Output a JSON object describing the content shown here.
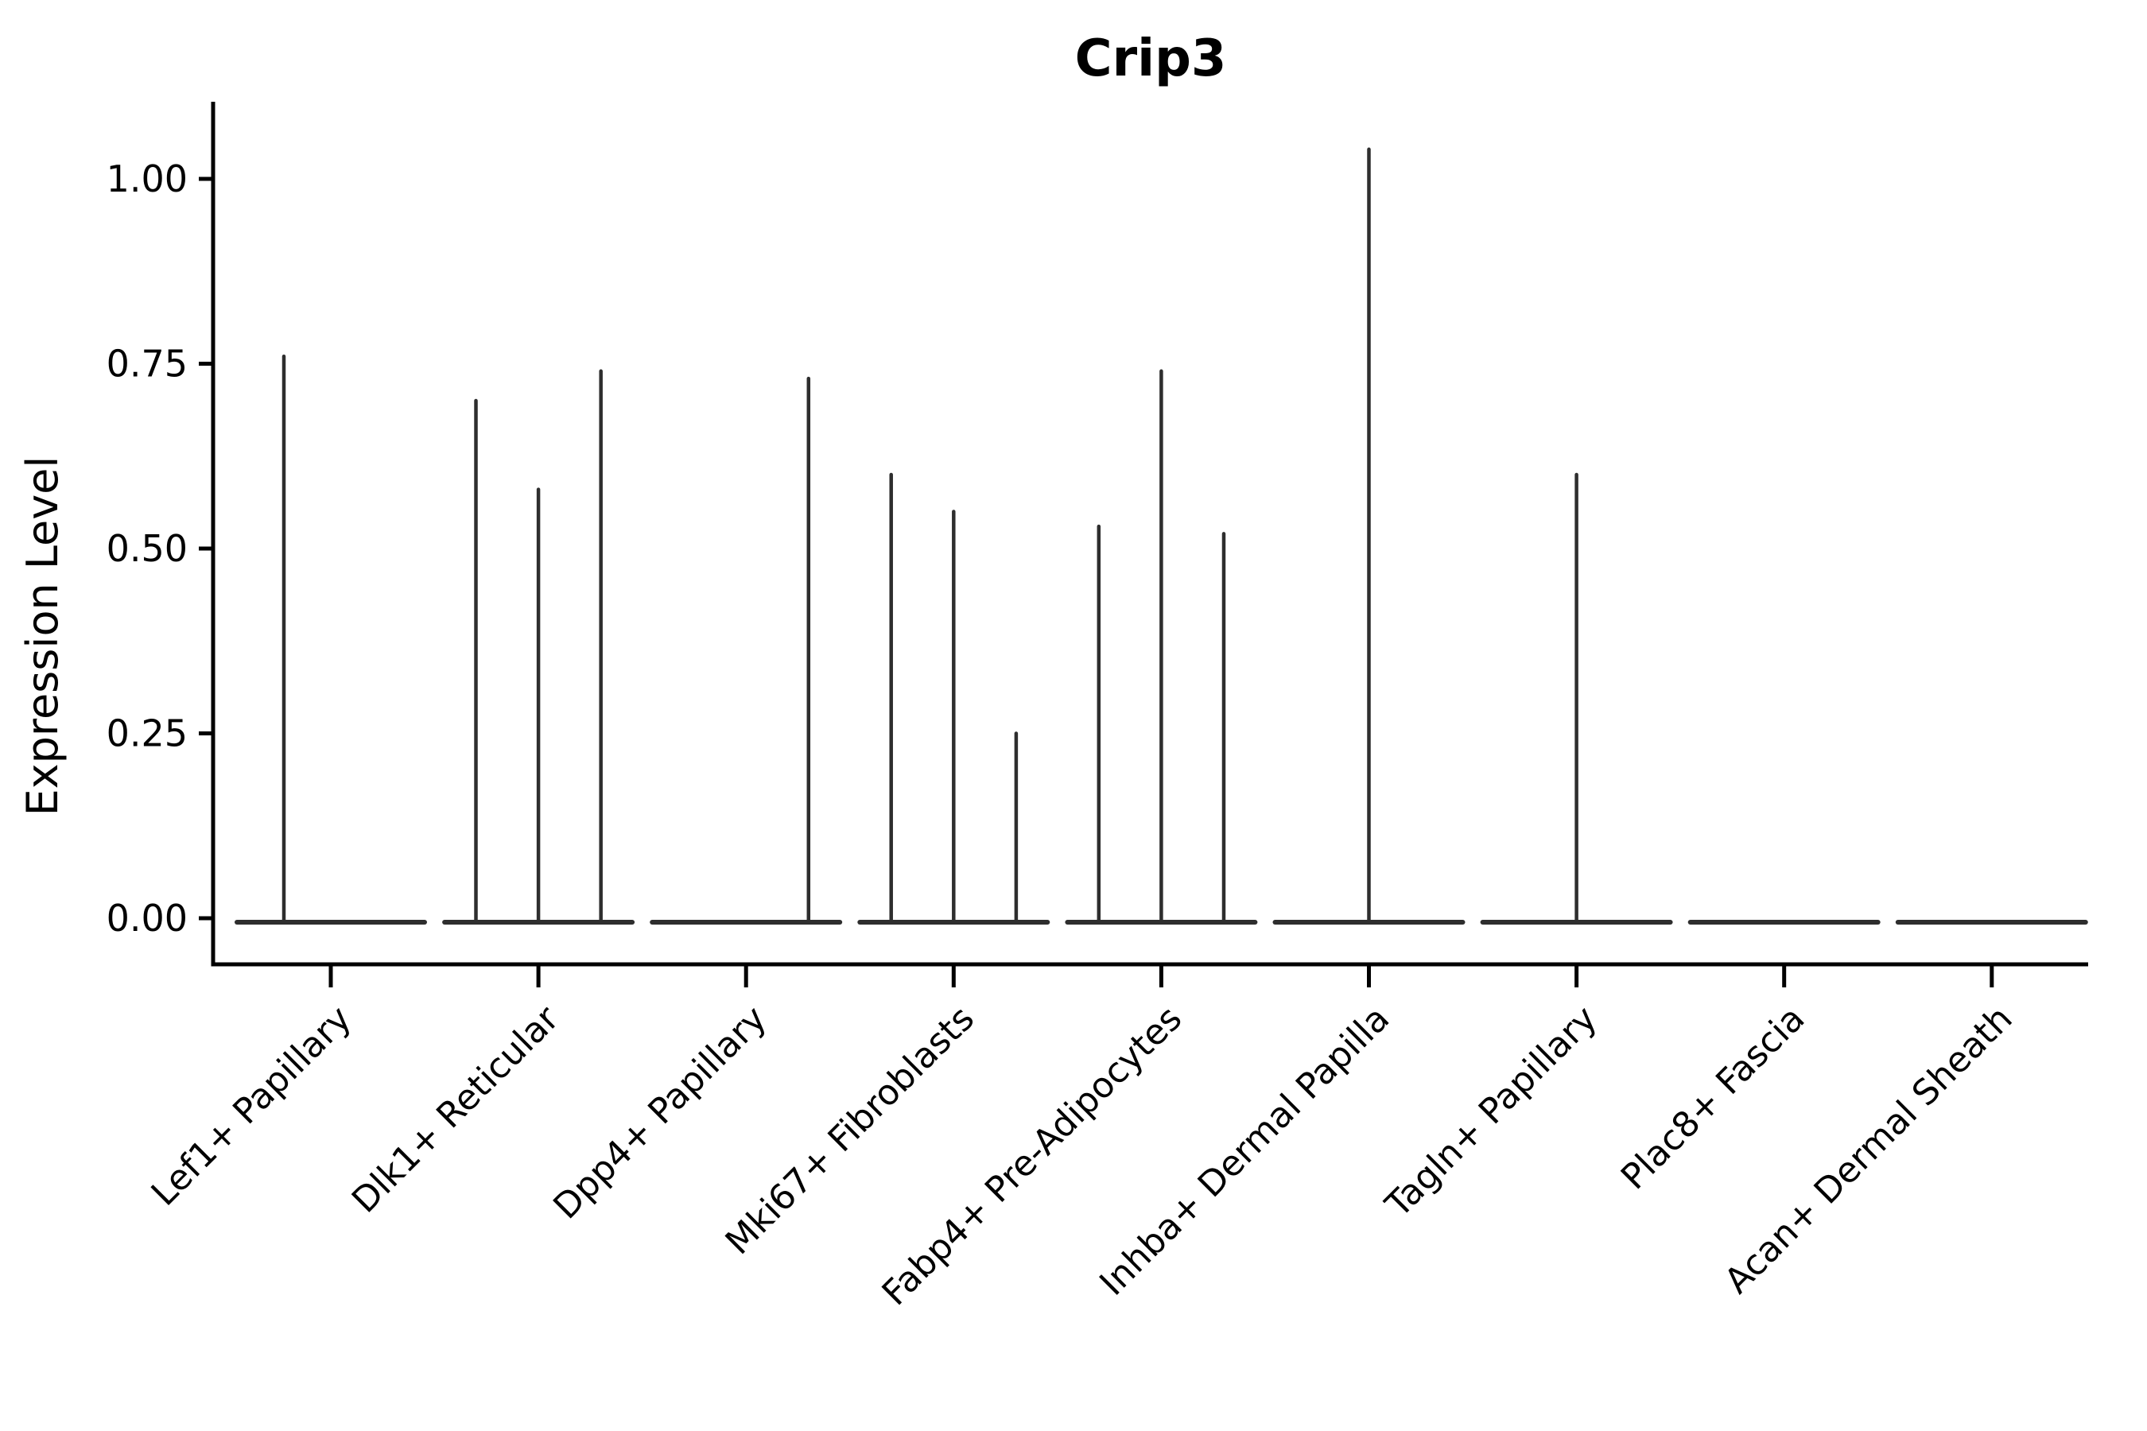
{
  "title": "Crip3",
  "colors": {
    "background": "#ffffff",
    "violin_stroke": "#2e2e2e",
    "axis_stroke": "#000000",
    "text": "#000000"
  },
  "chart_data": {
    "type": "violin",
    "title": "Crip3",
    "xlabel": "",
    "ylabel": "Expression Level",
    "ylim": [
      -0.06,
      1.1
    ],
    "grid": false,
    "legend": "none",
    "ytick_values": [
      0.0,
      0.25,
      0.5,
      0.75,
      1.0
    ],
    "ytick_labels": [
      "0.00",
      "0.25",
      "0.50",
      "0.75",
      "1.00"
    ],
    "categories": [
      "Lef1+ Papillary",
      "Dlk1+ Reticular",
      "Dpp4+ Papillary",
      "Mki67+ Fibroblasts",
      "Fabp4+ Pre-Adipocytes",
      "Inhba+ Dermal Papilla",
      "Tagln+ Papillary",
      "Plac8+ Fascia",
      "Acan+ Dermal Sheath"
    ],
    "description": "Violin plot of Crip3 expression; each category shows a flat violin body at 0 (most cells zero) with thin density spikes rising to the maximum expression of sub-violins.",
    "series": [
      {
        "category": "Lef1+ Papillary",
        "zero_baseline": true,
        "spikes": [
          {
            "offset": 0.25,
            "peak": 0.76
          }
        ]
      },
      {
        "category": "Dlk1+ Reticular",
        "zero_baseline": true,
        "spikes": [
          {
            "offset": 0.167,
            "peak": 0.7
          },
          {
            "offset": 0.5,
            "peak": 0.58
          },
          {
            "offset": 0.833,
            "peak": 0.74
          }
        ]
      },
      {
        "category": "Dpp4+ Papillary",
        "zero_baseline": true,
        "spikes": [
          {
            "offset": 0.833,
            "peak": 0.73
          }
        ]
      },
      {
        "category": "Mki67+ Fibroblasts",
        "zero_baseline": true,
        "spikes": [
          {
            "offset": 0.167,
            "peak": 0.6
          },
          {
            "offset": 0.5,
            "peak": 0.55
          },
          {
            "offset": 0.833,
            "peak": 0.25
          }
        ]
      },
      {
        "category": "Fabp4+ Pre-Adipocytes",
        "zero_baseline": true,
        "spikes": [
          {
            "offset": 0.167,
            "peak": 0.53
          },
          {
            "offset": 0.5,
            "peak": 0.74
          },
          {
            "offset": 0.833,
            "peak": 0.52
          }
        ]
      },
      {
        "category": "Inhba+ Dermal Papilla",
        "zero_baseline": true,
        "spikes": [
          {
            "offset": 0.5,
            "peak": 1.04
          }
        ]
      },
      {
        "category": "Tagln+ Papillary",
        "zero_baseline": true,
        "spikes": [
          {
            "offset": 0.5,
            "peak": 0.6
          }
        ]
      },
      {
        "category": "Plac8+ Fascia",
        "zero_baseline": true,
        "spikes": []
      },
      {
        "category": "Acan+ Dermal Sheath",
        "zero_baseline": true,
        "spikes": []
      }
    ]
  }
}
